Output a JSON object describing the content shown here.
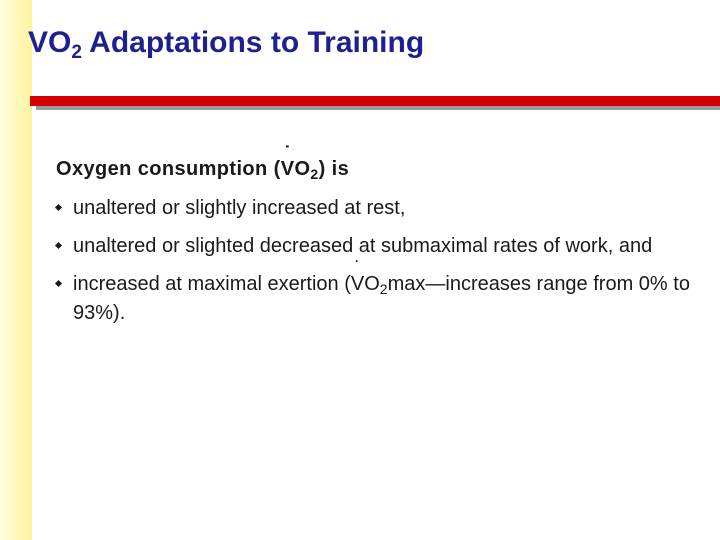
{
  "title": {
    "main": "VO",
    "sub": "2",
    "rest": " Adaptations to Training"
  },
  "lead": {
    "pre": "Oxygen consumption (",
    "v": "V",
    "o": "O",
    "sub": "2",
    "post": ") is"
  },
  "bullets": [
    {
      "text": "unaltered or slightly increased at rest,"
    },
    {
      "text": "unaltered or slighted decreased at submaximal rates of work, and"
    },
    {
      "pre": "increased at maximal exertion (",
      "v": "V",
      "o": "O",
      "sub": "2",
      "post": "max—increases range from 0% to 93%)."
    }
  ],
  "colors": {
    "title": "#1f1f8f",
    "rule": "#d40000",
    "band": "#fff3a0"
  }
}
